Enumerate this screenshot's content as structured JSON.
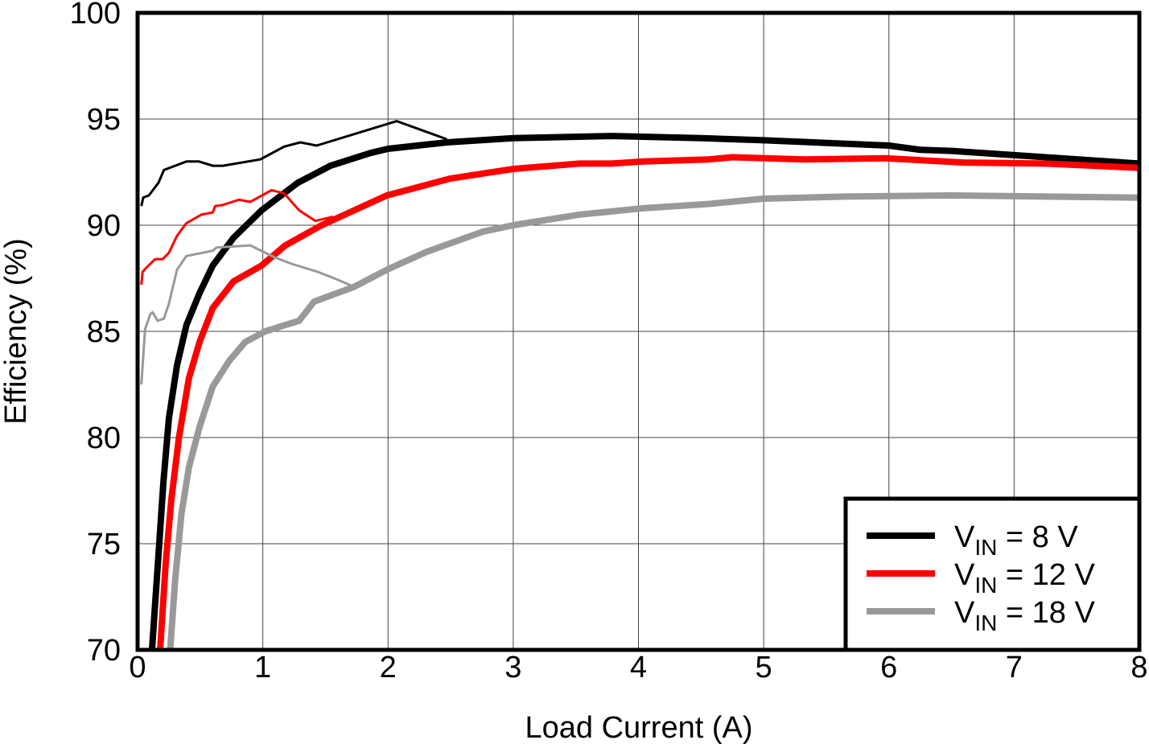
{
  "chart_data": {
    "type": "line",
    "title": "",
    "xlabel": "Load Current (A)",
    "ylabel": "Efficiency (%)",
    "xlim": [
      0,
      8
    ],
    "ylim": [
      70,
      100
    ],
    "xticks": [
      "0",
      "1",
      "2",
      "3",
      "4",
      "5",
      "6",
      "7",
      "8"
    ],
    "yticks": [
      "70",
      "75",
      "80",
      "85",
      "90",
      "95",
      "100"
    ],
    "grid": true,
    "legend_position": "bottom-right",
    "series": [
      {
        "name": "V_IN = 8 V",
        "legend_main": "V",
        "legend_sub": "IN",
        "legend_rest": " = 8 V",
        "color": "#000000",
        "weight": "thick",
        "x": [
          0.115,
          0.167,
          0.206,
          0.25,
          0.315,
          0.39,
          0.495,
          0.6,
          0.765,
          0.99,
          1.28,
          1.54,
          1.86,
          2.0,
          2.47,
          3.0,
          3.78,
          4.5,
          5.0,
          6.0,
          6.25,
          6.5,
          7.0,
          8.0
        ],
        "y": [
          70,
          74.5,
          77.9,
          80.9,
          83.4,
          85.3,
          86.8,
          88.1,
          89.4,
          90.7,
          92.0,
          92.8,
          93.4,
          93.6,
          93.9,
          94.1,
          94.2,
          94.1,
          94.0,
          93.75,
          93.55,
          93.5,
          93.3,
          92.9
        ]
      },
      {
        "name": "",
        "color": "#000000",
        "weight": "thin",
        "x": [
          0.03,
          0.045,
          0.09,
          0.167,
          0.21,
          0.39,
          0.49,
          0.6,
          0.68,
          0.98,
          1.17,
          1.3,
          1.43,
          2.07,
          2.47
        ],
        "y": [
          90.9,
          91.3,
          91.4,
          92.0,
          92.6,
          93.0,
          93.0,
          92.8,
          92.8,
          93.1,
          93.7,
          93.9,
          93.75,
          94.9,
          94.05
        ]
      },
      {
        "name": "V_IN = 12 V",
        "legend_main": "V",
        "legend_sub": "IN",
        "legend_rest": " = 12 V",
        "color": "#ff0000",
        "weight": "thick",
        "x": [
          0.18,
          0.225,
          0.27,
          0.33,
          0.41,
          0.495,
          0.6,
          0.765,
          0.99,
          1.18,
          1.47,
          1.73,
          1.99,
          2.31,
          2.5,
          3.0,
          3.53,
          3.78,
          4.04,
          4.56,
          4.75,
          5.33,
          5.97,
          6.6,
          7.25,
          8.0
        ],
        "y": [
          70,
          74.1,
          77.1,
          80.0,
          82.8,
          84.5,
          86.1,
          87.35,
          88.1,
          89.05,
          90.0,
          90.7,
          91.4,
          91.9,
          92.2,
          92.65,
          92.9,
          92.9,
          93.0,
          93.1,
          93.2,
          93.1,
          93.15,
          92.95,
          92.9,
          92.7
        ]
      },
      {
        "name": "",
        "color": "#ff0000",
        "weight": "thin",
        "x": [
          0.03,
          0.04,
          0.07,
          0.14,
          0.2,
          0.25,
          0.315,
          0.39,
          0.51,
          0.6,
          0.62,
          0.68,
          0.81,
          0.9,
          1.07,
          1.17,
          1.29,
          1.42,
          1.56
        ],
        "y": [
          87.2,
          87.8,
          88.0,
          88.4,
          88.4,
          88.7,
          89.5,
          90.1,
          90.5,
          90.6,
          90.9,
          90.95,
          91.2,
          91.1,
          91.65,
          91.5,
          90.7,
          90.2,
          90.4
        ]
      },
      {
        "name": "V_IN = 18 V",
        "legend_main": "V",
        "legend_sub": "IN",
        "legend_rest": " = 18 V",
        "color": "#999999",
        "weight": "thick",
        "x": [
          0.26,
          0.3,
          0.35,
          0.41,
          0.495,
          0.6,
          0.73,
          0.86,
          1.02,
          1.18,
          1.29,
          1.41,
          1.73,
          1.99,
          2.31,
          2.76,
          3.0,
          3.53,
          4.04,
          4.56,
          5.0,
          5.65,
          6.5,
          7.25,
          8.0
        ],
        "y": [
          70,
          73.3,
          76.4,
          78.6,
          80.5,
          82.4,
          83.6,
          84.5,
          85.0,
          85.3,
          85.5,
          86.4,
          87.1,
          87.9,
          88.75,
          89.7,
          90.0,
          90.5,
          90.8,
          91.0,
          91.25,
          91.35,
          91.4,
          91.35,
          91.3
        ]
      },
      {
        "name": "",
        "color": "#999999",
        "weight": "thin",
        "x": [
          0.03,
          0.06,
          0.1,
          0.12,
          0.16,
          0.21,
          0.25,
          0.315,
          0.39,
          0.6,
          0.63,
          0.9,
          1.09,
          1.22,
          1.44,
          1.57,
          1.71
        ],
        "y": [
          82.5,
          85.1,
          85.8,
          85.9,
          85.5,
          85.6,
          86.3,
          87.9,
          88.55,
          88.8,
          88.95,
          89.05,
          88.5,
          88.2,
          87.8,
          87.5,
          87.15
        ]
      }
    ]
  }
}
